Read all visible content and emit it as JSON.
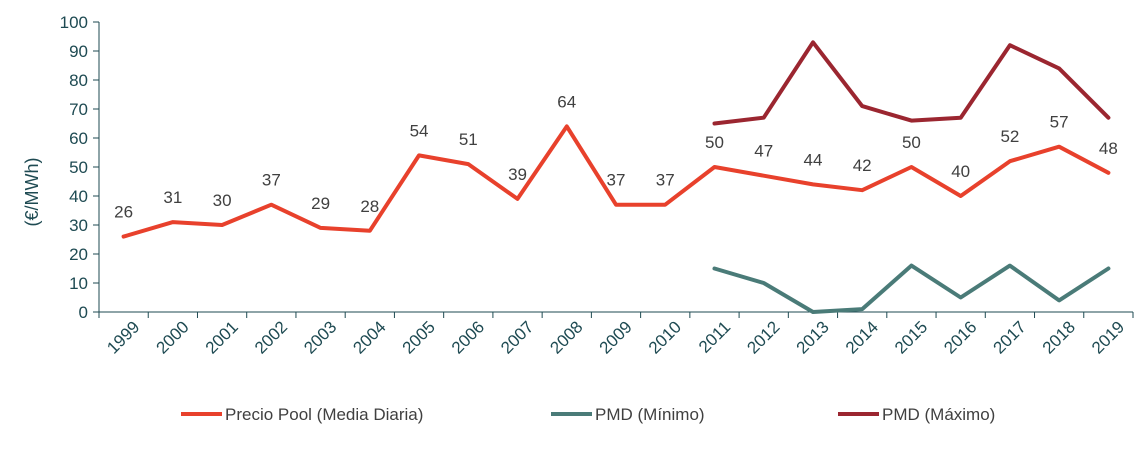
{
  "chart_data": {
    "type": "line",
    "ylabel": "(€/MWh)",
    "ylim": [
      0,
      100
    ],
    "yticks": [
      "0",
      "10",
      "20",
      "30",
      "40",
      "50",
      "60",
      "70",
      "80",
      "90",
      "100"
    ],
    "x": [
      "1999",
      "2000",
      "2001",
      "2002",
      "2003",
      "2004",
      "2005",
      "2006",
      "2007",
      "2008",
      "2009",
      "2010",
      "2011",
      "2012",
      "2013",
      "2014",
      "2015",
      "2016",
      "2017",
      "2018",
      "2019"
    ],
    "grid": false,
    "legend_position": "bottom",
    "series": [
      {
        "name": "Precio Pool (Media Diaria)",
        "color": "#e8412c",
        "values": [
          26,
          31,
          30,
          37,
          29,
          28,
          54,
          51,
          39,
          64,
          37,
          37,
          50,
          47,
          44,
          42,
          50,
          40,
          52,
          57,
          48
        ],
        "data_labels": [
          "26",
          "31",
          "30",
          "37",
          "29",
          "28",
          "54",
          "51",
          "39",
          "64",
          "37",
          "37",
          "50",
          "47",
          "44",
          "42",
          "50",
          "40",
          "52",
          "57",
          "48"
        ]
      },
      {
        "name": "PMD (Mínimo)",
        "color": "#4a7b78",
        "values": [
          null,
          null,
          null,
          null,
          null,
          null,
          null,
          null,
          null,
          null,
          null,
          null,
          15,
          10,
          0,
          1,
          16,
          5,
          16,
          4,
          15
        ]
      },
      {
        "name": "PMD (Máximo)",
        "color": "#9b2630",
        "values": [
          null,
          null,
          null,
          null,
          null,
          null,
          null,
          null,
          null,
          null,
          null,
          null,
          65,
          67,
          93,
          71,
          66,
          67,
          92,
          84,
          67
        ]
      }
    ]
  }
}
